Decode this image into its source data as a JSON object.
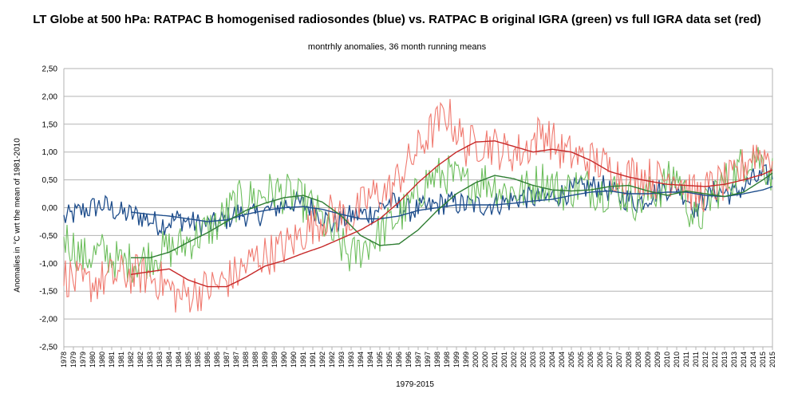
{
  "chart_data": {
    "type": "line",
    "title": "LT Globe at 500 hPa: RATPAC B homogenised radiosondes (blue) vs. RATPAC B original IGRA (green) vs full IGRA data set (red)",
    "subtitle": "montrhly anomalies, 36 month running means",
    "xlabel": "1979-2015",
    "ylabel": "Anomalies in °C wrt the mean of 1981-2010",
    "ylim": [
      -2.5,
      2.5
    ],
    "xlim": [
      1978,
      2015
    ],
    "grid": true,
    "y_ticks": [
      "2,50",
      "2,00",
      "1,50",
      "1,00",
      "0,50",
      "0,00",
      "-0,50",
      "-1,00",
      "-1,50",
      "-2,00",
      "-2,50"
    ],
    "x_ticks": [
      "1978",
      "1979",
      "1979",
      "1980",
      "1980",
      "1981",
      "1981",
      "1982",
      "1982",
      "1983",
      "1983",
      "1984",
      "1984",
      "1985",
      "1985",
      "1986",
      "1986",
      "1987",
      "1987",
      "1988",
      "1988",
      "1989",
      "1989",
      "1990",
      "1990",
      "1991",
      "1991",
      "1992",
      "1992",
      "1993",
      "1993",
      "1994",
      "1994",
      "1995",
      "1995",
      "1996",
      "1996",
      "1997",
      "1997",
      "1998",
      "1998",
      "1999",
      "1999",
      "2000",
      "2000",
      "2001",
      "2001",
      "2002",
      "2002",
      "2003",
      "2003",
      "2004",
      "2004",
      "2005",
      "2005",
      "2006",
      "2006",
      "2007",
      "2007",
      "2008",
      "2008",
      "2009",
      "2009",
      "2010",
      "2010",
      "2011",
      "2011",
      "2012",
      "2012",
      "2013",
      "2013",
      "2014",
      "2014",
      "2015",
      "2015"
    ],
    "series": [
      {
        "name": "RATPAC B homogenised radiosondes (monthly)",
        "color": "#1f4e8c",
        "style": "monthly",
        "x": [
          1978.0,
          1979.0,
          1980.0,
          1981.0,
          1982.0,
          1983.0,
          1984.0,
          1985.0,
          1986.0,
          1987.0,
          1988.0,
          1989.0,
          1990.0,
          1991.0,
          1992.0,
          1993.0,
          1994.0,
          1995.0,
          1996.0,
          1997.0,
          1998.0,
          1999.0,
          2000.0,
          2001.0,
          2002.0,
          2003.0,
          2004.0,
          2005.0,
          2006.0,
          2007.0,
          2008.0,
          2009.0,
          2010.0,
          2011.0,
          2012.0,
          2013.0,
          2014.0,
          2015.0
        ],
        "values": [
          -0.2,
          -0.05,
          0.05,
          -0.1,
          -0.15,
          -0.3,
          -0.2,
          -0.3,
          -0.3,
          -0.1,
          -0.15,
          0.0,
          0.1,
          0.0,
          -0.3,
          -0.15,
          -0.1,
          0.1,
          -0.05,
          0.0,
          0.1,
          0.05,
          0.05,
          0.1,
          0.2,
          0.15,
          0.25,
          0.35,
          0.4,
          0.2,
          0.1,
          0.3,
          0.4,
          0.0,
          0.3,
          0.25,
          0.5,
          0.6
        ]
      },
      {
        "name": "RATPAC B original IGRA (monthly)",
        "color": "#6fbf5f",
        "style": "monthly",
        "x": [
          1978.0,
          1979.0,
          1980.0,
          1981.0,
          1982.0,
          1983.0,
          1984.0,
          1985.0,
          1986.0,
          1987.0,
          1988.0,
          1989.0,
          1990.0,
          1991.0,
          1992.0,
          1993.0,
          1994.0,
          1995.0,
          1996.0,
          1997.0,
          1998.0,
          1999.0,
          2000.0,
          2001.0,
          2002.0,
          2003.0,
          2004.0,
          2005.0,
          2006.0,
          2007.0,
          2008.0,
          2009.0,
          2010.0,
          2011.0,
          2012.0,
          2013.0,
          2014.0,
          2015.0
        ],
        "values": [
          -0.5,
          -0.9,
          -0.8,
          -1.0,
          -0.95,
          -0.8,
          -0.7,
          -0.5,
          -0.3,
          0.1,
          0.2,
          0.3,
          0.2,
          0.0,
          -0.5,
          -0.9,
          -0.6,
          -0.3,
          0.0,
          0.5,
          0.6,
          0.4,
          0.5,
          0.3,
          0.3,
          0.5,
          0.3,
          0.4,
          0.3,
          0.3,
          0.1,
          0.3,
          0.6,
          -0.3,
          0.3,
          0.6,
          1.0,
          0.6
        ]
      },
      {
        "name": "Full IGRA data set (monthly)",
        "color": "#f07a70",
        "style": "monthly",
        "x": [
          1978.0,
          1979.0,
          1980.0,
          1981.0,
          1982.0,
          1983.0,
          1984.0,
          1985.0,
          1986.0,
          1987.0,
          1988.0,
          1989.0,
          1990.0,
          1991.0,
          1992.0,
          1993.0,
          1994.0,
          1995.0,
          1996.0,
          1997.0,
          1998.0,
          1999.0,
          2000.0,
          2001.0,
          2002.0,
          2003.0,
          2004.0,
          2005.0,
          2006.0,
          2007.0,
          2008.0,
          2009.0,
          2010.0,
          2011.0,
          2012.0,
          2013.0,
          2014.0,
          2015.0
        ],
        "values": [
          -1.2,
          -1.4,
          -1.3,
          -1.2,
          -1.2,
          -1.3,
          -1.6,
          -1.5,
          -1.4,
          -1.2,
          -0.9,
          -0.8,
          -0.6,
          -0.3,
          -0.1,
          -0.2,
          0.2,
          0.3,
          0.8,
          1.3,
          1.7,
          1.1,
          1.2,
          1.0,
          1.0,
          1.4,
          1.0,
          0.9,
          0.8,
          0.6,
          0.6,
          0.5,
          0.6,
          0.2,
          0.4,
          0.5,
          1.0,
          0.9
        ]
      },
      {
        "name": "RATPAC B homogenised radiosondes (36 month running mean)",
        "color": "#1f4e8c",
        "style": "smooth",
        "x": [
          1981.5,
          1982.5,
          1983.5,
          1984.5,
          1985.5,
          1986.5,
          1987.5,
          1988.5,
          1989.5,
          1990.5,
          1991.5,
          1992.5,
          1993.5,
          1994.5,
          1995.5,
          1996.5,
          1997.5,
          1998.5,
          1999.5,
          2000.5,
          2001.5,
          2002.5,
          2003.5,
          2004.5,
          2005.5,
          2006.5,
          2007.5,
          2008.5,
          2009.5,
          2010.5,
          2011.5,
          2012.5,
          2013.5,
          2014.5,
          2015.0
        ],
        "values": [
          -0.08,
          -0.12,
          -0.15,
          -0.2,
          -0.25,
          -0.22,
          -0.12,
          -0.05,
          0.0,
          0.02,
          -0.03,
          -0.12,
          -0.2,
          -0.2,
          -0.15,
          -0.05,
          0.0,
          0.05,
          0.05,
          0.05,
          0.08,
          0.12,
          0.15,
          0.22,
          0.28,
          0.3,
          0.25,
          0.25,
          0.28,
          0.28,
          0.22,
          0.2,
          0.25,
          0.32,
          0.38
        ]
      },
      {
        "name": "RATPAC B original IGRA (36 month running mean)",
        "color": "#2e7d32",
        "style": "smooth",
        "x": [
          1981.5,
          1982.5,
          1983.5,
          1984.5,
          1985.5,
          1986.5,
          1987.5,
          1988.5,
          1989.5,
          1990.5,
          1991.5,
          1992.5,
          1993.5,
          1994.5,
          1995.5,
          1996.5,
          1997.5,
          1998.5,
          1999.5,
          2000.5,
          2001.5,
          2002.5,
          2003.5,
          2004.5,
          2005.5,
          2006.5,
          2007.5,
          2008.5,
          2009.5,
          2010.5,
          2011.5,
          2012.5,
          2013.5,
          2014.5,
          2015.0
        ],
        "values": [
          -0.9,
          -0.9,
          -0.8,
          -0.62,
          -0.45,
          -0.25,
          -0.05,
          0.08,
          0.18,
          0.22,
          0.1,
          -0.15,
          -0.5,
          -0.68,
          -0.65,
          -0.4,
          -0.05,
          0.25,
          0.45,
          0.58,
          0.52,
          0.4,
          0.32,
          0.3,
          0.32,
          0.38,
          0.4,
          0.3,
          0.22,
          0.3,
          0.25,
          0.2,
          0.28,
          0.5,
          0.62
        ]
      },
      {
        "name": "Full IGRA data set (36 month running mean)",
        "color": "#c62828",
        "style": "smooth",
        "x": [
          1981.5,
          1982.5,
          1983.5,
          1984.5,
          1985.5,
          1986.5,
          1987.5,
          1988.5,
          1989.5,
          1990.5,
          1991.5,
          1992.5,
          1993.5,
          1994.5,
          1995.5,
          1996.5,
          1997.5,
          1998.5,
          1999.5,
          2000.5,
          2001.5,
          2002.5,
          2003.5,
          2004.5,
          2005.5,
          2006.5,
          2007.5,
          2008.5,
          2009.5,
          2010.5,
          2011.5,
          2012.5,
          2013.5,
          2014.5,
          2015.0
        ],
        "values": [
          -1.2,
          -1.15,
          -1.1,
          -1.3,
          -1.42,
          -1.42,
          -1.25,
          -1.05,
          -0.95,
          -0.82,
          -0.7,
          -0.55,
          -0.4,
          -0.2,
          0.1,
          0.45,
          0.75,
          1.0,
          1.18,
          1.2,
          1.1,
          1.0,
          1.05,
          1.0,
          0.85,
          0.65,
          0.55,
          0.48,
          0.42,
          0.4,
          0.38,
          0.42,
          0.5,
          0.6,
          0.68
        ]
      }
    ]
  }
}
